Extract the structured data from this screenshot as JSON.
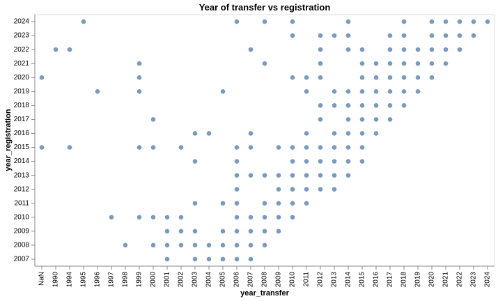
{
  "chart_data": {
    "type": "scatter",
    "title": "Year of transfer vs registration",
    "x_label": "year_transfer",
    "y_label": "year_registration",
    "color": "#4c78a8",
    "xticks": [
      "NaN",
      "1990",
      "1994",
      "1995",
      "1996",
      "1997",
      "1998",
      "1999",
      "2000",
      "2001",
      "2002",
      "2003",
      "2004",
      "2005",
      "2006",
      "2007",
      "2008",
      "2009",
      "2010",
      "2011",
      "2012",
      "2013",
      "2014",
      "2015",
      "2016",
      "2017",
      "2018",
      "2019",
      "2020",
      "2021",
      "2022",
      "2023",
      "2024"
    ],
    "yticks": [
      "2024",
      "2023",
      "2022",
      "2021",
      "2020",
      "2019",
      "2018",
      "2017",
      "2016",
      "2015",
      "2014",
      "2013",
      "2012",
      "2011",
      "2010",
      "2009",
      "2008",
      "2007"
    ],
    "rows": [
      {
        "y": "2024",
        "x": [
          "1995",
          "2006",
          "2008",
          "2010",
          "2014",
          "2018",
          "2020",
          "2021",
          "2022",
          "2023",
          "2024"
        ]
      },
      {
        "y": "2023",
        "x": [
          "2010",
          "2012",
          "2013",
          "2014",
          "2017",
          "2018",
          "2020",
          "2021",
          "2022",
          "2023"
        ]
      },
      {
        "y": "2022",
        "x": [
          "1990",
          "1994",
          "2007",
          "2012",
          "2014",
          "2015",
          "2017",
          "2018",
          "2019",
          "2020",
          "2021",
          "2022"
        ]
      },
      {
        "y": "2021",
        "x": [
          "1999",
          "2008",
          "2012",
          "2015",
          "2016",
          "2017",
          "2018",
          "2019",
          "2020",
          "2021"
        ]
      },
      {
        "y": "2020",
        "x": [
          "NaN",
          "1999",
          "2010",
          "2011",
          "2012",
          "2015",
          "2016",
          "2017",
          "2018",
          "2019",
          "2020"
        ]
      },
      {
        "y": "2019",
        "x": [
          "1996",
          "1999",
          "2005",
          "2011",
          "2013",
          "2014",
          "2015",
          "2016",
          "2017",
          "2018",
          "2019"
        ]
      },
      {
        "y": "2018",
        "x": [
          "2012",
          "2013",
          "2014",
          "2015",
          "2016",
          "2017",
          "2018"
        ]
      },
      {
        "y": "2017",
        "x": [
          "2000",
          "2012",
          "2014",
          "2015",
          "2016",
          "2017"
        ]
      },
      {
        "y": "2016",
        "x": [
          "2003",
          "2004",
          "2007",
          "2011",
          "2013",
          "2014",
          "2015",
          "2016"
        ]
      },
      {
        "y": "2015",
        "x": [
          "NaN",
          "1994",
          "1999",
          "2000",
          "2002",
          "2006",
          "2007",
          "2009",
          "2010",
          "2011",
          "2012",
          "2013",
          "2014",
          "2015"
        ]
      },
      {
        "y": "2014",
        "x": [
          "2003",
          "2006",
          "2010",
          "2011",
          "2012",
          "2013",
          "2014",
          "2015"
        ]
      },
      {
        "y": "2013",
        "x": [
          "2006",
          "2007",
          "2008",
          "2009",
          "2010",
          "2011",
          "2012",
          "2013",
          "2014"
        ]
      },
      {
        "y": "2012",
        "x": [
          "2006",
          "2009",
          "2010",
          "2011",
          "2012",
          "2013"
        ]
      },
      {
        "y": "2011",
        "x": [
          "2003",
          "2005",
          "2006",
          "2008",
          "2009",
          "2010",
          "2011"
        ]
      },
      {
        "y": "2010",
        "x": [
          "1997",
          "1999",
          "2000",
          "2001",
          "2002",
          "2006",
          "2007",
          "2008",
          "2009",
          "2010"
        ]
      },
      {
        "y": "2009",
        "x": [
          "2001",
          "2002",
          "2003",
          "2005",
          "2006",
          "2007",
          "2008",
          "2009"
        ]
      },
      {
        "y": "2008",
        "x": [
          "1998",
          "2000",
          "2001",
          "2002",
          "2003",
          "2004",
          "2005",
          "2006",
          "2007",
          "2008"
        ]
      },
      {
        "y": "2007",
        "x": [
          "2001",
          "2003",
          "2004",
          "2005",
          "2006",
          "2007"
        ]
      }
    ]
  }
}
